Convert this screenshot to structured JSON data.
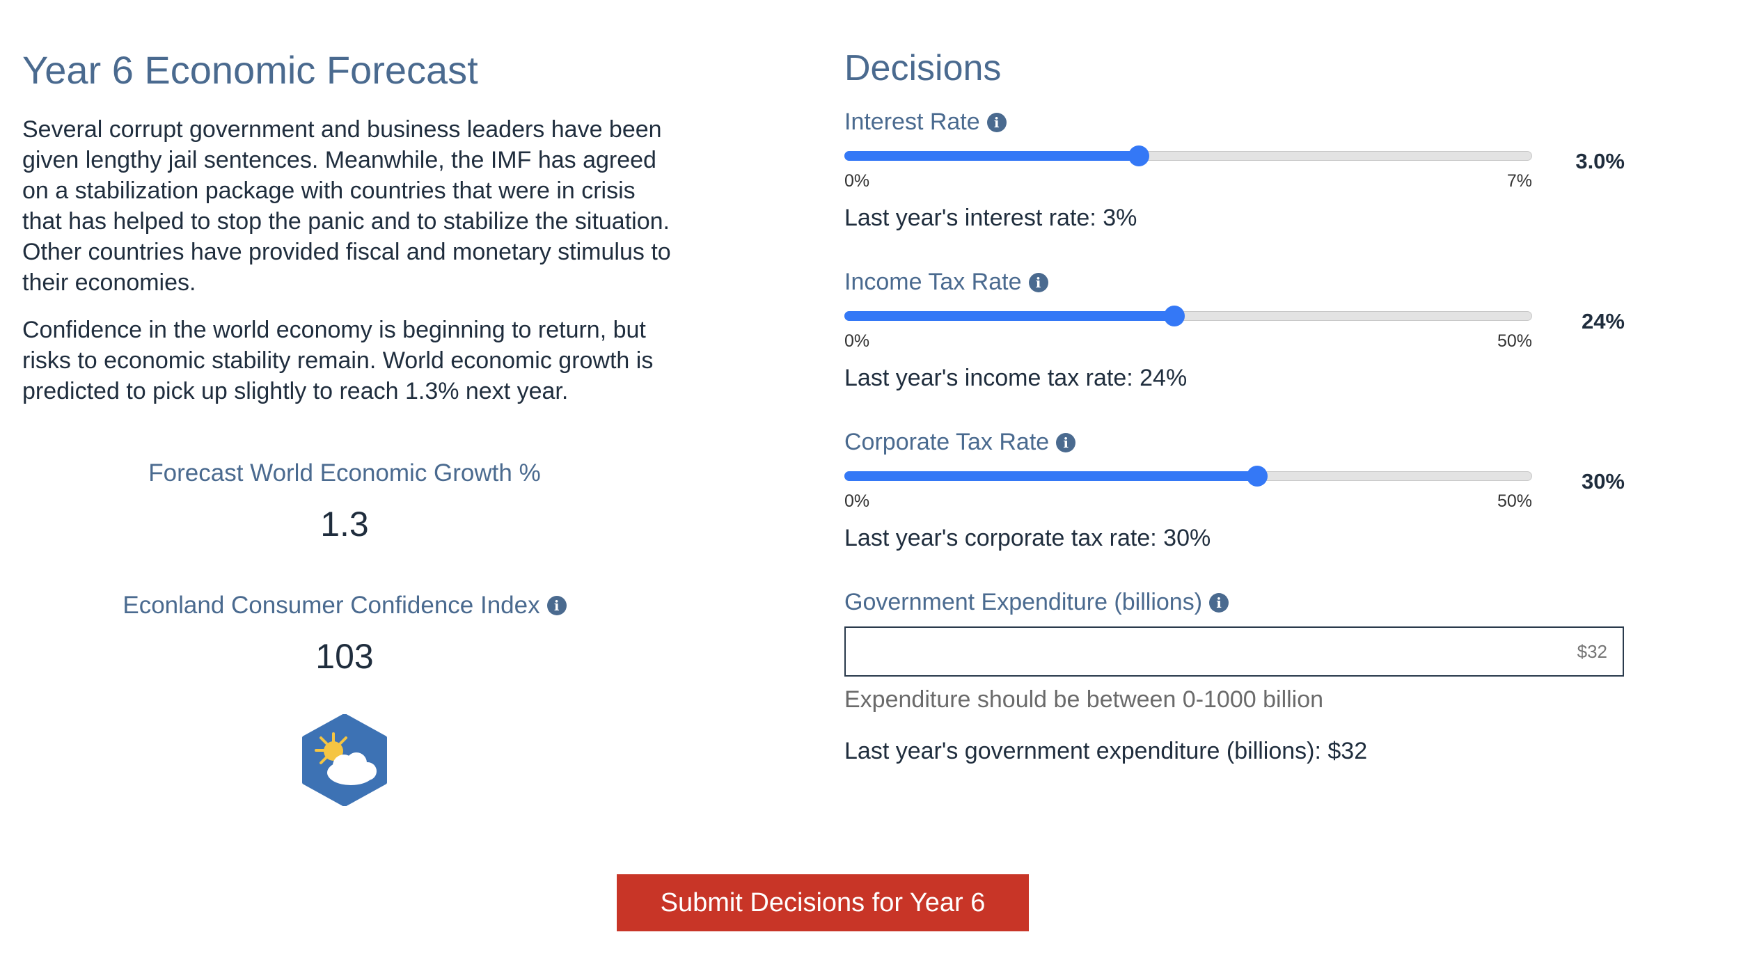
{
  "forecast": {
    "title": "Year 6 Economic Forecast",
    "paragraphs": [
      "Several corrupt government and business leaders have been given lengthy jail sentences. Meanwhile, the IMF has agreed on a stabilization package with countries that were in crisis that has helped to stop the panic and to stabilize the situation. Other countries have provided fiscal and monetary stimulus to their economies.",
      "Confidence in the world economy is beginning to return, but risks to economic stability remain. World economic growth is predicted to pick up slightly to reach 1.3% next year."
    ],
    "growth_label": "Forecast World Economic Growth %",
    "growth_value": "1.3",
    "confidence_label": "Econland Consumer Confidence Index",
    "confidence_value": "103",
    "weather_icon": "partly-sunny-icon"
  },
  "decisions": {
    "title": "Decisions",
    "interest": {
      "label": "Interest Rate",
      "min_label": "0%",
      "max_label": "7%",
      "value_label": "3.0%",
      "fraction": 0.4286,
      "last_year": "Last year's interest rate: 3%"
    },
    "income_tax": {
      "label": "Income Tax Rate",
      "min_label": "0%",
      "max_label": "50%",
      "value_label": "24%",
      "fraction": 0.48,
      "last_year": "Last year's income tax rate: 24%"
    },
    "corporate_tax": {
      "label": "Corporate Tax Rate",
      "min_label": "0%",
      "max_label": "50%",
      "value_label": "30%",
      "fraction": 0.6,
      "last_year": "Last year's corporate tax rate: 30%"
    },
    "expenditure": {
      "label": "Government Expenditure (billions)",
      "placeholder": "$32",
      "hint": "Expenditure should be between 0-1000 billion",
      "last_year": "Last year's government expenditure (billions): $32"
    }
  },
  "submit_label": "Submit Decisions for Year 6",
  "info_glyph": "i",
  "colors": {
    "accent": "#3478f6",
    "heading": "#4a6a8f",
    "submit": "#c83527",
    "hex": "#3d72b4"
  }
}
